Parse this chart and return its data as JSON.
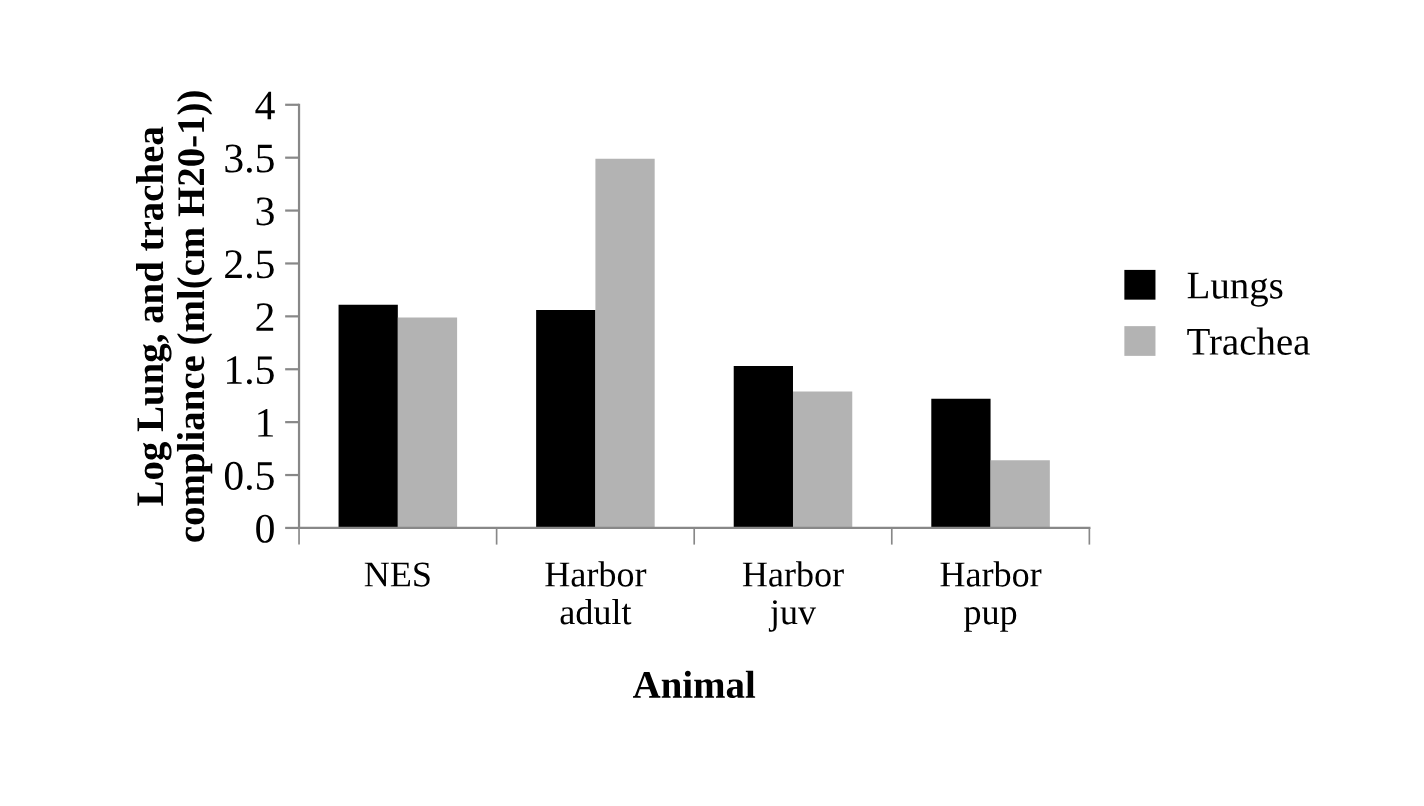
{
  "chart_data": {
    "type": "bar",
    "xlabel": "Animal",
    "ylabel": "Log Lung, and trachea\ncompliance (ml(cm H20-1))",
    "categories": [
      "NES",
      "Harbor\nadult",
      "Harbor\njuv",
      "Harbor\npup"
    ],
    "series": [
      {
        "name": "Lungs",
        "color": "#000000",
        "values": [
          2.11,
          2.06,
          1.53,
          1.22
        ]
      },
      {
        "name": "Trachea",
        "color": "#b3b3b3",
        "values": [
          1.99,
          3.49,
          1.29,
          0.64
        ]
      }
    ],
    "ylim": [
      0,
      4
    ],
    "yticks": [
      0,
      0.5,
      1,
      1.5,
      2,
      2.5,
      3,
      3.5,
      4
    ],
    "grid": false,
    "legend": "right"
  }
}
